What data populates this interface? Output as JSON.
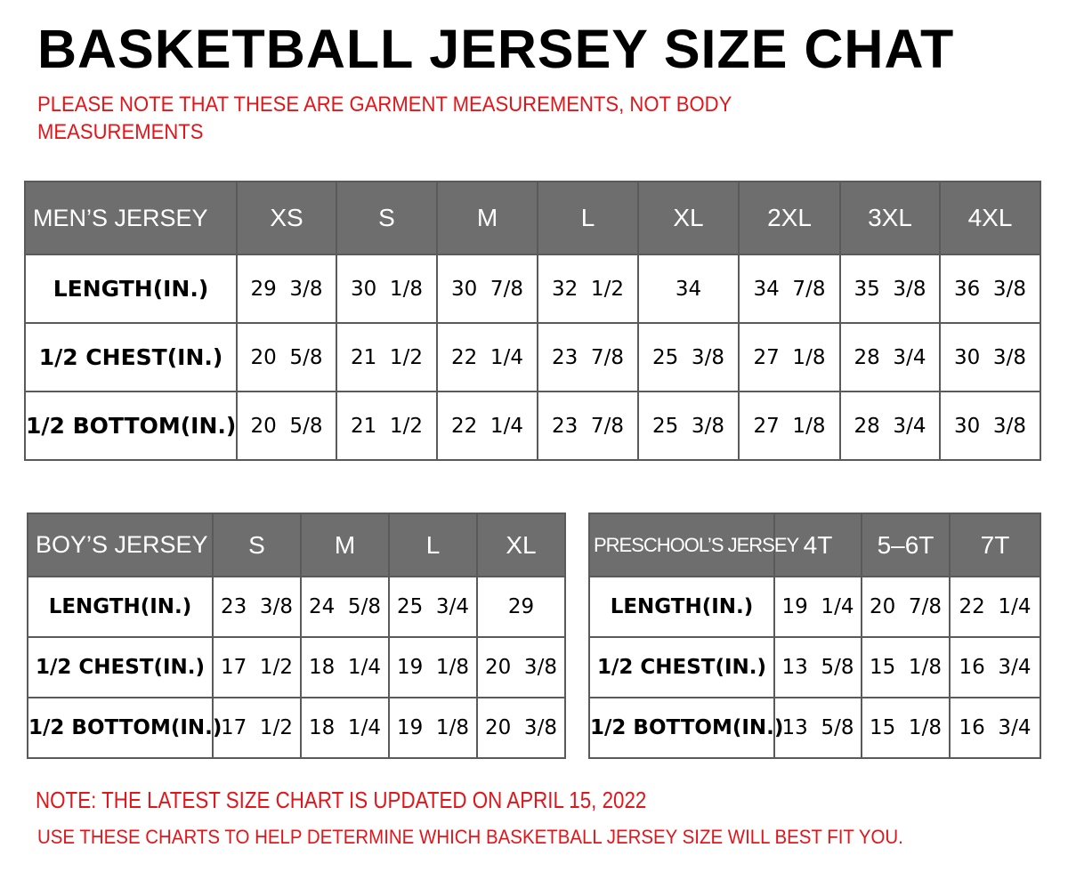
{
  "title": "BASKETBALL JERSEY SIZE CHAT",
  "note_line1": "PLEASE NOTE THAT THESE ARE GARMENT MEASUREMENTS, NOT BODY",
  "note_line2": "MEASUREMENTS",
  "footer_note1": "NOTE: THE LATEST SIZE CHART IS UPDATED ON APRIL 15, 2022",
  "footer_note2": "USE THESE CHARTS TO HELP DETERMINE WHICH  BASKETBALL JERSEY  SIZE WILL BEST FIT YOU.",
  "colors": {
    "header_bg": "#6e6e6e",
    "note_red": "#e0161b"
  },
  "mens": {
    "header": "MEN’S JERSEY",
    "sizes": [
      "XS",
      "S",
      "M",
      "L",
      "XL",
      "2XL",
      "3XL",
      "4XL"
    ],
    "rows": [
      {
        "label": "LENGTH(IN.)",
        "values": [
          "29  3/8",
          "30  1/8",
          "30  7/8",
          "32  1/2",
          "34",
          "34  7/8",
          "35  3/8",
          "36  3/8"
        ]
      },
      {
        "label": "1/2  CHEST(IN.)",
        "values": [
          "20  5/8",
          "21  1/2",
          "22  1/4",
          "23  7/8",
          "25  3/8",
          "27  1/8",
          "28  3/4",
          "30  3/8"
        ]
      },
      {
        "label": "1/2  BOTTOM(IN.)",
        "values": [
          "20  5/8",
          "21  1/2",
          "22  1/4",
          "23  7/8",
          "25  3/8",
          "27  1/8",
          "28  3/4",
          "30  3/8"
        ]
      }
    ]
  },
  "boys": {
    "header": "BOY’S JERSEY",
    "sizes": [
      "S",
      "M",
      "L",
      "XL"
    ],
    "rows": [
      {
        "label": "LENGTH(IN.)",
        "values": [
          "23  3/8",
          "24  5/8",
          "25  3/4",
          "29"
        ]
      },
      {
        "label": "1/2  CHEST(IN.)",
        "values": [
          "17  1/2",
          "18  1/4",
          "19  1/8",
          "20  3/8"
        ]
      },
      {
        "label": "1/2  BOTTOM(IN.)",
        "values": [
          "17  1/2",
          "18  1/4",
          "19  1/8",
          "20  3/8"
        ]
      }
    ]
  },
  "preschool": {
    "header": "PRESCHOOL’S JERSEY",
    "sizes": [
      "4T",
      "5–6T",
      "7T"
    ],
    "rows": [
      {
        "label": "LENGTH(IN.)",
        "values": [
          "19  1/4",
          "20  7/8",
          "22  1/4"
        ]
      },
      {
        "label": "1/2  CHEST(IN.)",
        "values": [
          "13  5/8",
          "15  1/8",
          "16  3/4"
        ]
      },
      {
        "label": "1/2  BOTTOM(IN.)",
        "values": [
          "13  5/8",
          "15  1/8",
          "16  3/4"
        ]
      }
    ]
  }
}
